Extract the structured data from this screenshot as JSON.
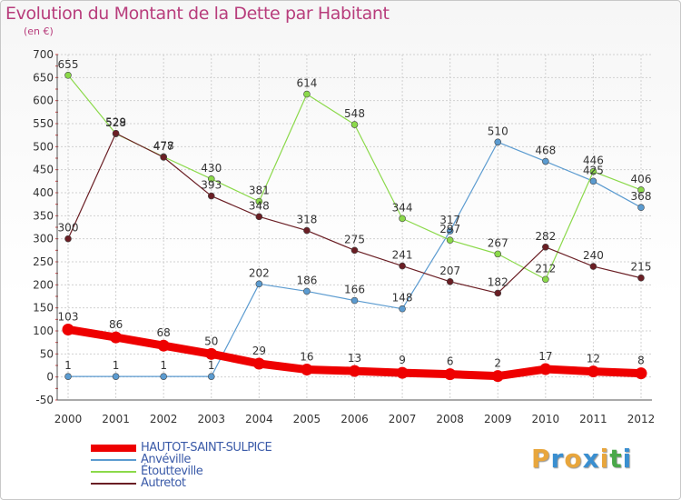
{
  "header": {
    "title": "Evolution du Montant de la Dette par Habitant",
    "unit": "(en €)"
  },
  "logo": {
    "text": "Proxiti",
    "letters": [
      "P",
      "r",
      "o",
      "x",
      "i",
      "t",
      "i"
    ],
    "colors": [
      "#e8a63c",
      "#3a8fd0",
      "#e8a63c",
      "#3a8fd0",
      "#e8a63c",
      "#4aa84a",
      "#3a8fd0"
    ]
  },
  "chart_data": {
    "type": "line",
    "title": "Evolution du Montant de la Dette par Habitant",
    "ylabel": "(en €)",
    "xlabel": "",
    "categories": [
      "2000",
      "2001",
      "2002",
      "2003",
      "2004",
      "2005",
      "2006",
      "2007",
      "2008",
      "2009",
      "2010",
      "2011",
      "2012"
    ],
    "ylim": [
      -50,
      700
    ],
    "yticks": [
      -50,
      0,
      50,
      100,
      150,
      200,
      250,
      300,
      350,
      400,
      450,
      500,
      550,
      600,
      650,
      700
    ],
    "grid": true,
    "legend_position": "bottom-left",
    "series": [
      {
        "name": "HAUTOT-SAINT-SULPICE",
        "color": "#ee0000",
        "width": 9,
        "values": [
          103,
          86,
          68,
          50,
          29,
          16,
          13,
          9,
          6,
          2,
          17,
          12,
          8
        ]
      },
      {
        "name": "Anvéville",
        "color": "#5b9bd0",
        "width": 1.2,
        "values": [
          1,
          1,
          1,
          1,
          202,
          186,
          166,
          148,
          317,
          510,
          468,
          425,
          368
        ]
      },
      {
        "name": "Étoutteville",
        "color": "#8bd94a",
        "width": 1.2,
        "values": [
          655,
          528,
          478,
          430,
          381,
          614,
          548,
          344,
          297,
          267,
          212,
          446,
          406
        ]
      },
      {
        "name": "Autretot",
        "color": "#6a1e24",
        "width": 1.2,
        "values": [
          300,
          529,
          477,
          393,
          348,
          318,
          275,
          241,
          207,
          182,
          282,
          240,
          215
        ]
      }
    ]
  }
}
